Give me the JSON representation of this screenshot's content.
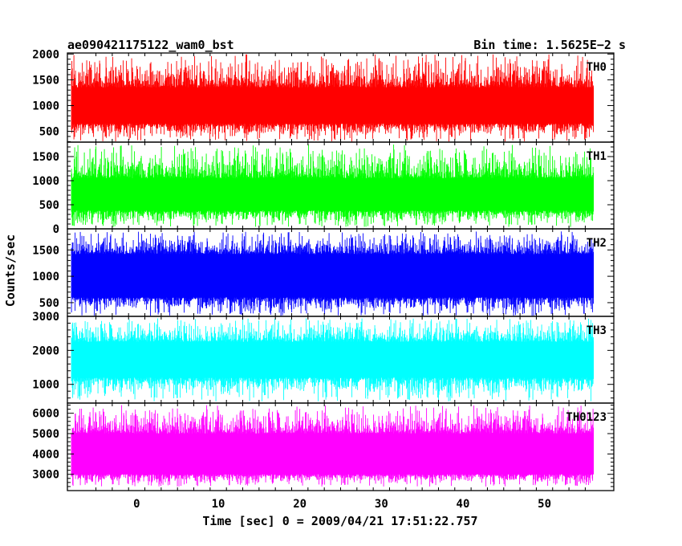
{
  "header": {
    "title": "ae090421175122_wam0_bst",
    "bin_time": "Bin time: 1.5625E−2 s"
  },
  "chart_data": {
    "type": "line",
    "title": "ae090421175122_wam0_bst",
    "subtitle": "Bin time: 1.5625E−2 s",
    "xlabel": "Time [sec] 0 = 2009/04/21 17:51:22.757",
    "ylabel": "Counts/sec",
    "xlim": [
      -8.5,
      58.5
    ],
    "data_xrange": [
      -8,
      56
    ],
    "bin_time": 0.015625,
    "x_ticks": [
      0,
      10,
      20,
      30,
      40,
      50
    ],
    "grid": false,
    "panels": [
      {
        "name": "TH0",
        "color": "#ff0000",
        "ylim": [
          290,
          2020
        ],
        "y_ticks": [
          500,
          1000,
          1500,
          2000
        ],
        "typical_low": 650,
        "typical_high": 1350,
        "min": 300,
        "max": 2000
      },
      {
        "name": "TH1",
        "color": "#00ff00",
        "ylim": [
          0,
          1800
        ],
        "y_ticks": [
          0,
          500,
          1000,
          1500
        ],
        "typical_low": 380,
        "typical_high": 1050,
        "min": 40,
        "max": 1750
      },
      {
        "name": "TH2",
        "color": "#0000ff",
        "ylim": [
          240,
          1900
        ],
        "y_ticks": [
          500,
          1000,
          1500
        ],
        "typical_low": 600,
        "typical_high": 1420,
        "min": 250,
        "max": 1850
      },
      {
        "name": "TH3",
        "color": "#00ffff",
        "ylim": [
          450,
          3000
        ],
        "y_ticks": [
          1000,
          2000,
          3000
        ],
        "typical_low": 1200,
        "typical_high": 2250,
        "min": 500,
        "max": 2950
      },
      {
        "name": "TH0123",
        "color": "#ff00ff",
        "ylim": [
          2200,
          6500
        ],
        "y_ticks": [
          3000,
          4000,
          5000,
          6000
        ],
        "typical_low": 3000,
        "typical_high": 5000,
        "min": 2400,
        "max": 6400
      }
    ]
  }
}
